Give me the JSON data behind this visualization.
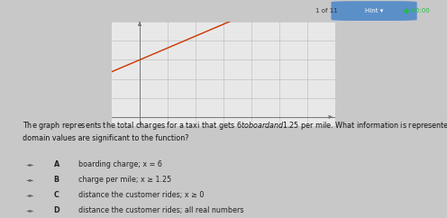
{
  "bg_color": "#c8c8c8",
  "left_bar_color": "#3a8fb5",
  "graph_bg": "#e8e8e8",
  "slope": 1.25,
  "intercept": 6,
  "x_range": [
    -1,
    7
  ],
  "y_range": [
    -1,
    10
  ],
  "grid_color": "#b8b8b8",
  "line_color": "#cc3300",
  "axis_color": "#777777",
  "question_text": "The graph represents the total charges for a taxi that gets $6 to board and $1.25 per mile. What information is represented on the x - axis? Which\ndomain values are significant to the function?",
  "options": [
    {
      "label": "A",
      "text": "boarding charge; x = 6",
      "row_color": "#d0d0d0"
    },
    {
      "label": "B",
      "text": "charge per mile; x ≥ 1.25",
      "row_color": "#c0c0c0"
    },
    {
      "label": "C",
      "text": "distance the customer rides; x ≥ 0",
      "row_color": "#d0d0d0"
    },
    {
      "label": "D",
      "text": "distance the customer rides; all real numbers",
      "row_color": "#c0c0c0"
    }
  ],
  "top_text": "1 of 11",
  "hint_text": "Hint ▾",
  "timer_text": "● 00:00",
  "font_size_question": 5.8,
  "font_size_options": 5.8,
  "font_size_top": 5.0
}
